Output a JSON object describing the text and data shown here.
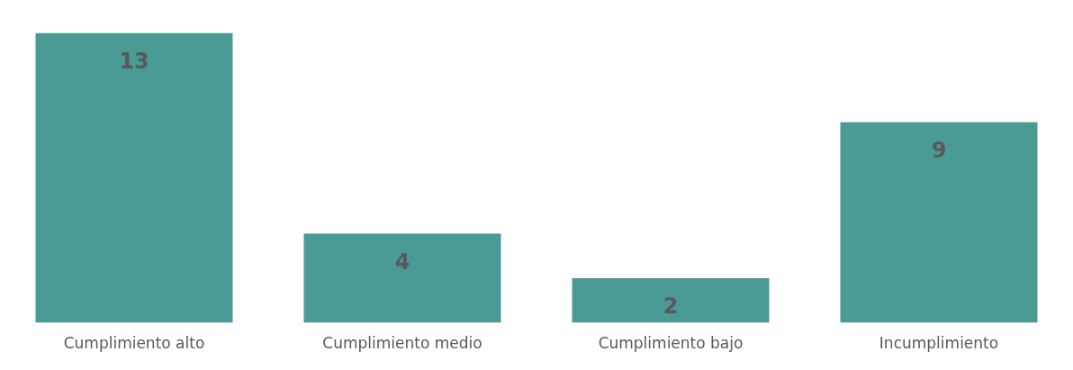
{
  "chart_data": {
    "type": "bar",
    "categories": [
      "Cumplimiento alto",
      "Cumplimiento medio",
      "Cumplimiento bajo",
      "Incumplimiento"
    ],
    "values": [
      13,
      4,
      2,
      9
    ],
    "color": "#4a9b95",
    "data_labels": true,
    "grid": false,
    "legend": false
  }
}
